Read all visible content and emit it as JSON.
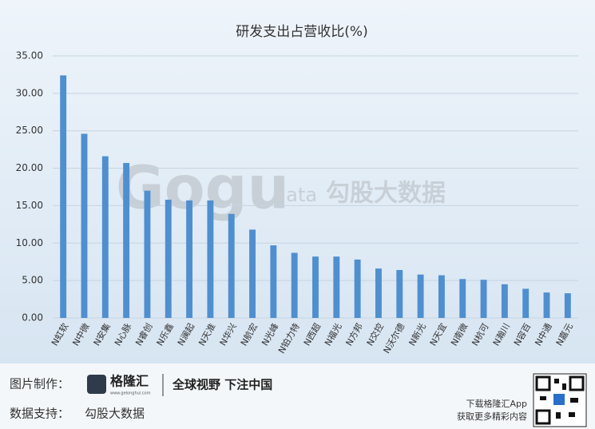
{
  "chart_data": {
    "type": "bar",
    "title": "研发支出占营收比(%)",
    "categories": [
      "N虹软",
      "N中微",
      "N安集",
      "N心脉",
      "N睿创",
      "N乐鑫",
      "N澜起",
      "N天准",
      "N华兴",
      "N航宏",
      "N光峰",
      "N铂力特",
      "N西超",
      "N福光",
      "N方邦",
      "N交控",
      "N沃尔德",
      "N新光",
      "N天宜",
      "N南微",
      "N杭可",
      "N瀚川",
      "N容百",
      "N中通",
      "N嘉元"
    ],
    "values": [
      32.4,
      24.6,
      21.6,
      20.7,
      17.0,
      15.8,
      15.7,
      15.7,
      13.9,
      11.8,
      9.7,
      8.7,
      8.2,
      8.2,
      7.8,
      6.6,
      6.4,
      5.8,
      5.7,
      5.2,
      5.1,
      4.5,
      3.9,
      3.4,
      3.3
    ],
    "color": "#4f8fcf",
    "ylim": [
      0,
      35
    ],
    "yticks": [
      {
        "value": 0,
        "label": "0.00"
      },
      {
        "value": 5,
        "label": "5.00"
      },
      {
        "value": 10,
        "label": "10.00"
      },
      {
        "value": 15,
        "label": "15.00"
      },
      {
        "value": 20,
        "label": "20.00"
      },
      {
        "value": 25,
        "label": "25.00"
      },
      {
        "value": 30,
        "label": "30.00"
      },
      {
        "value": 35,
        "label": "35.00"
      }
    ],
    "grid": true
  },
  "watermark": {
    "logo": "Gogu",
    "suffix": "data",
    "brand": "勾股大数据"
  },
  "footer": {
    "made_by_label": "图片制作：",
    "logo_name": "格隆汇",
    "logo_url": "www.gelonghui.com",
    "slogan": "全球视野 下注中国",
    "data_label": "数据支持：",
    "data_source": "勾股大数据",
    "download": "下载格隆汇App",
    "more": "获取更多精彩内容"
  }
}
